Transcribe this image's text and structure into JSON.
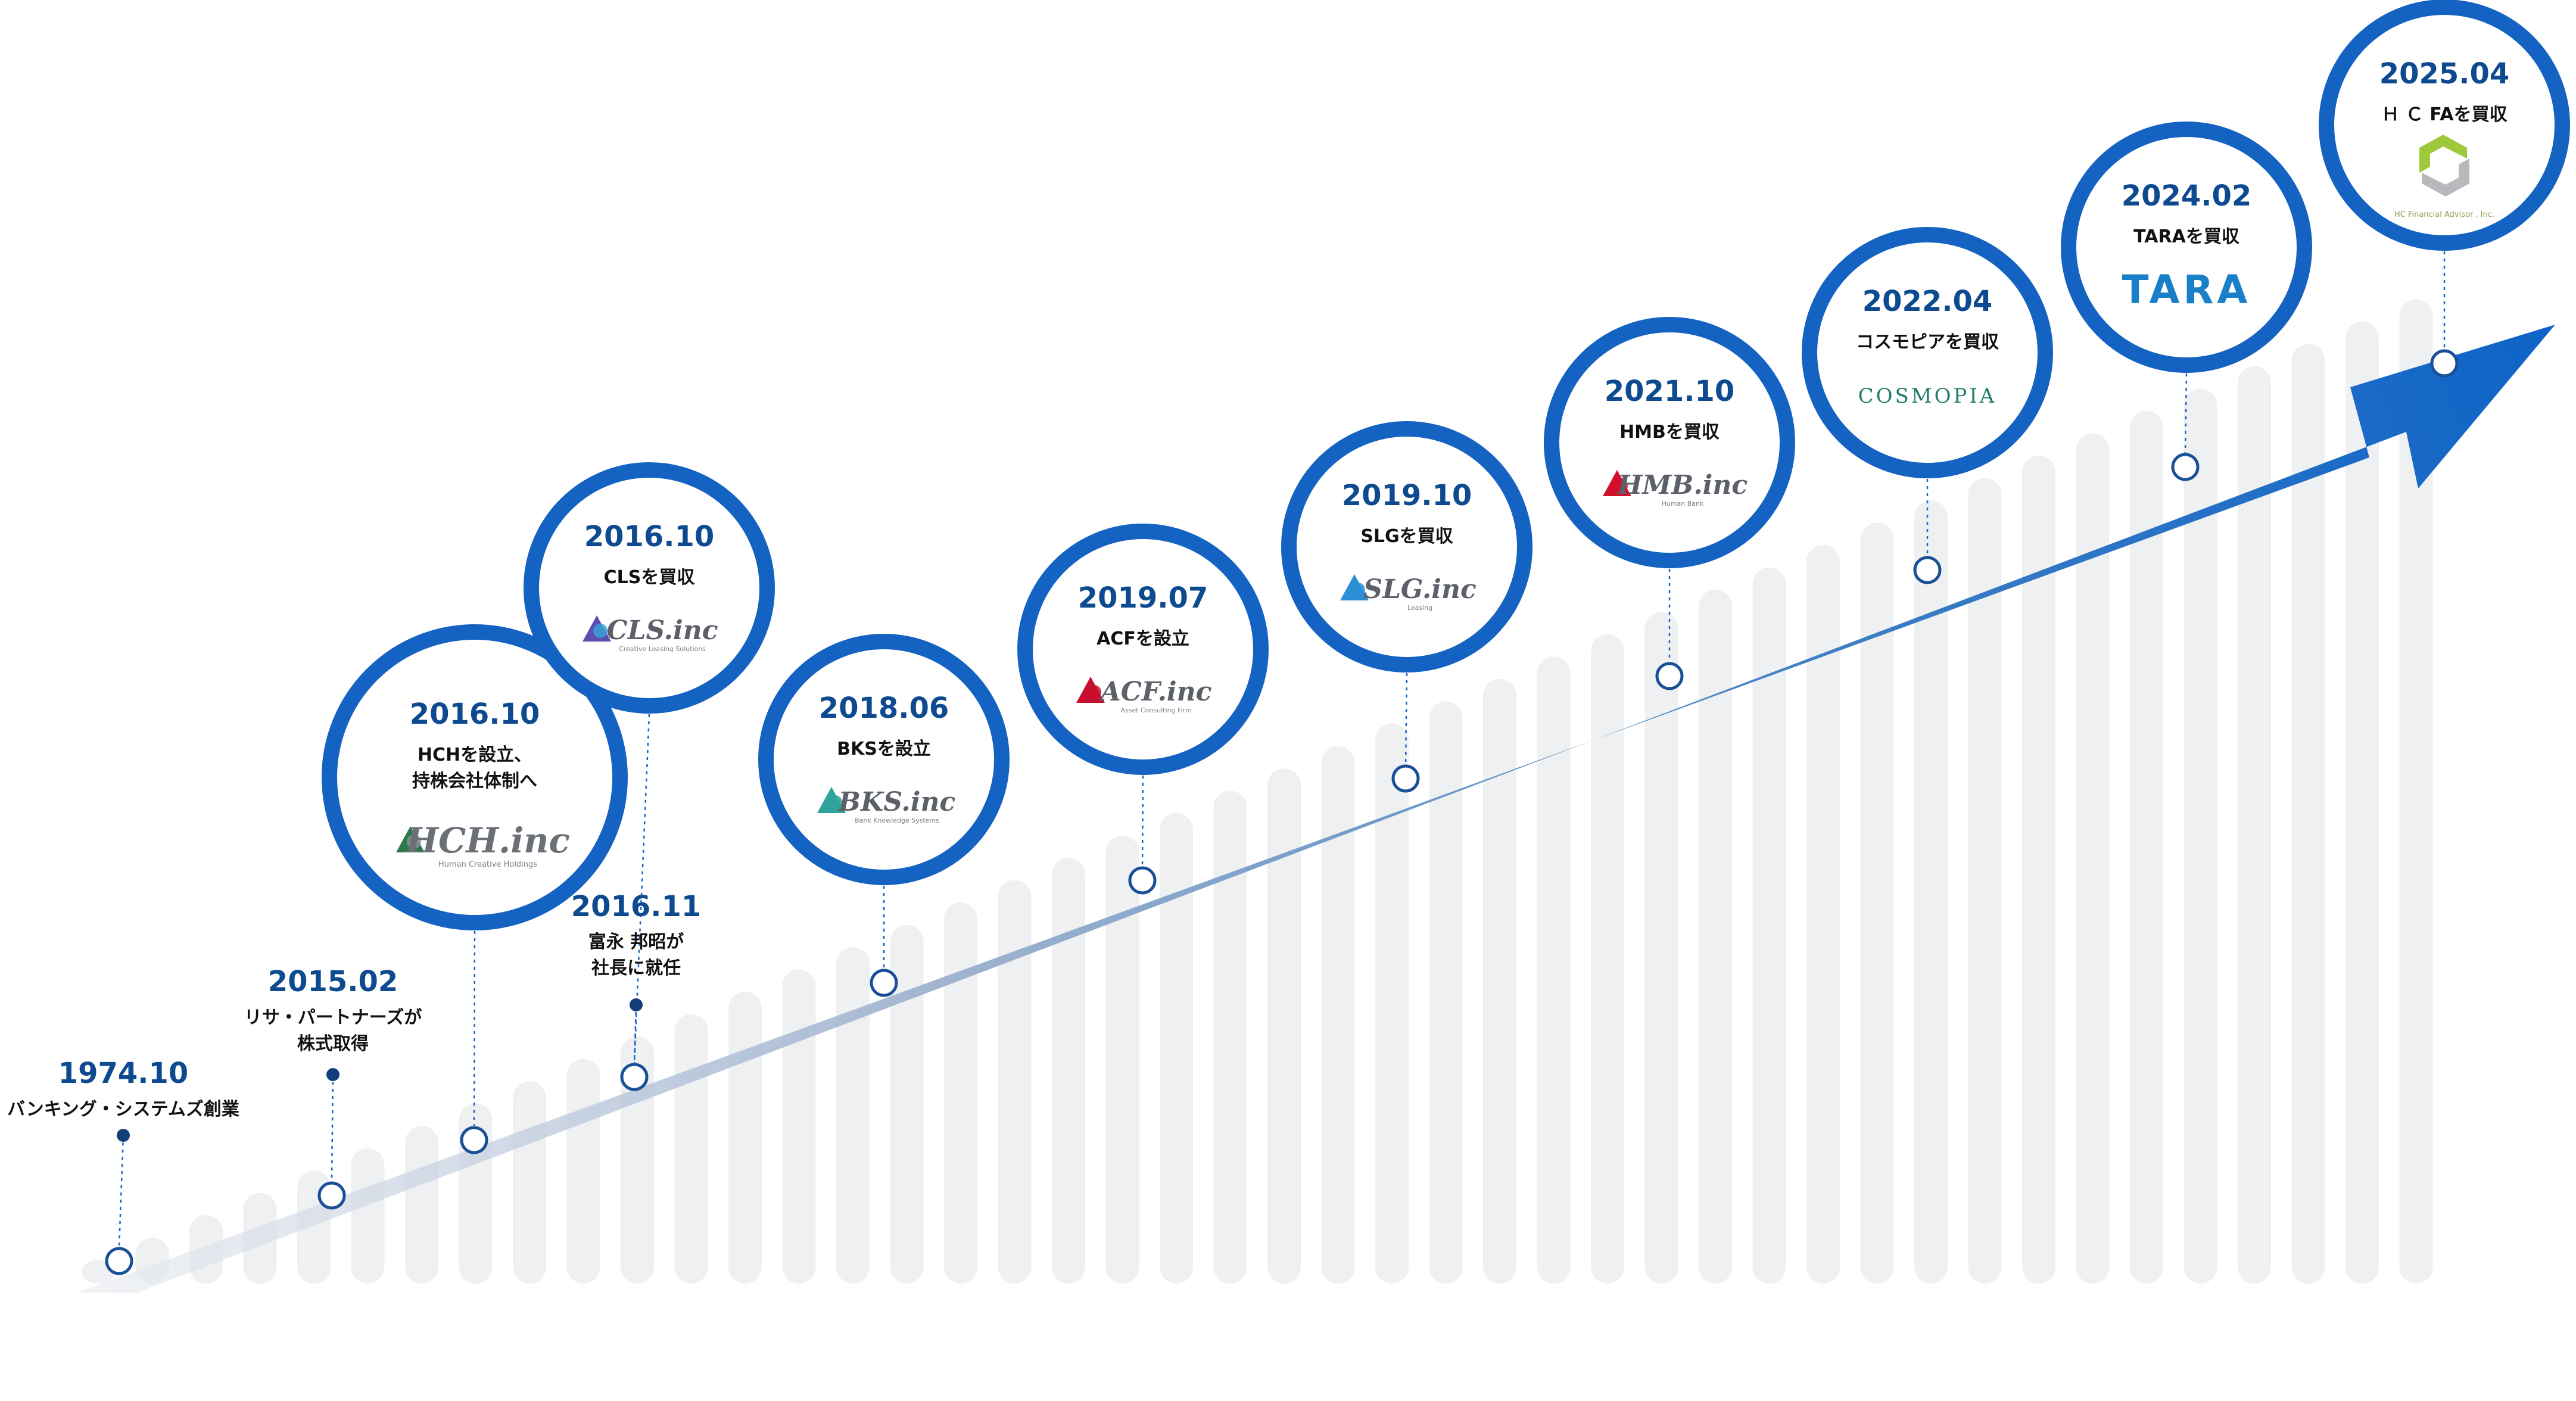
{
  "colors": {
    "primary": "#1462c1",
    "date": "#0d4a8f",
    "bars": "#eff0f2",
    "arrow_start": "#e6e9ef",
    "arrow_end": "#0d63c7"
  },
  "events": [
    {
      "date": "1974.10",
      "desc": [
        "バンキング・システムズ創業"
      ]
    },
    {
      "date": "2015.02",
      "desc": [
        "リサ・パートナーズが",
        "株式取得"
      ]
    },
    {
      "date": "2016.10",
      "desc": [
        "HCHを設立、",
        "持株会社体制へ"
      ],
      "logo": "HCH.inc",
      "logo_sub": "Human Creative Holdings",
      "logo_icon": "hch-logo-icon"
    },
    {
      "date": "2016.10",
      "desc": [
        "CLSを買収"
      ],
      "logo": "CLS.inc",
      "logo_sub": "Creative Leasing Solutions",
      "logo_icon": "cls-logo-icon"
    },
    {
      "date": "2016.11",
      "desc": [
        "富永 邦昭が",
        "社長に就任"
      ]
    },
    {
      "date": "2018.06",
      "desc": [
        "BKSを設立"
      ],
      "logo": "BKS.inc",
      "logo_sub": "Bank Knowledge Systems",
      "logo_icon": "bks-logo-icon"
    },
    {
      "date": "2019.07",
      "desc": [
        "ACFを設立"
      ],
      "logo": "ACF.inc",
      "logo_sub": "Asset Consulting Firm",
      "logo_icon": "acf-logo-icon"
    },
    {
      "date": "2019.10",
      "desc": [
        "SLGを買収"
      ],
      "logo": "SLG.inc",
      "logo_sub": "Leasing",
      "logo_icon": "slg-logo-icon"
    },
    {
      "date": "2021.10",
      "desc": [
        "HMBを買収"
      ],
      "logo": "HMB.inc",
      "logo_sub": "Human Bank",
      "logo_icon": "hmb-logo-icon"
    },
    {
      "date": "2022.04",
      "desc": [
        "コスモピアを買収"
      ],
      "logo": "COSMOPIA",
      "logo_icon": "cosmopia-logo"
    },
    {
      "date": "2024.02",
      "desc": [
        "TARAを買収"
      ],
      "logo": "TARA",
      "logo_icon": "tara-logo"
    },
    {
      "date": "2025.04",
      "desc": [
        "Ｈ Ｃ FAを買収"
      ],
      "logo": "",
      "logo_sub": "HC Financial Advisor , Inc.",
      "logo_icon": "hcfa-logo-icon"
    }
  ]
}
